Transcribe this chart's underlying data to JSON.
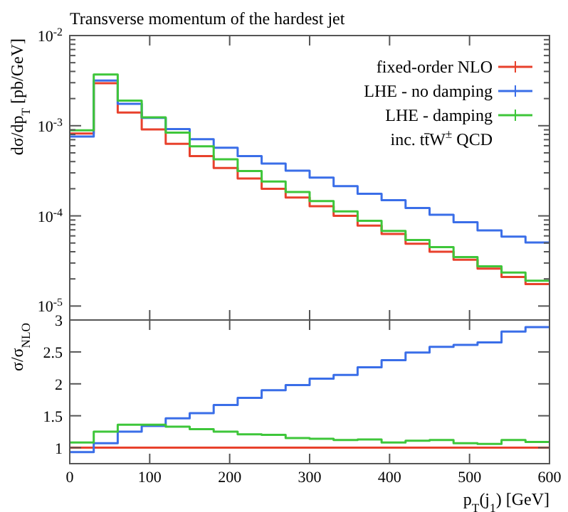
{
  "chart_data": [
    {
      "type": "histogram",
      "title": "Transverse momentum of the hardest jet",
      "ylabel": "dσ/dp$_{T}$ [pb/GeV]",
      "log": "y",
      "legend": "top right",
      "tick_labels": "y",
      "grid": false,
      "bins": [
        0,
        30,
        60,
        90,
        120,
        150,
        180,
        210,
        240,
        270,
        300,
        330,
        360,
        390,
        420,
        450,
        480,
        510,
        540,
        570,
        600
      ],
      "xlim": [
        0,
        600
      ],
      "xticks": [
        {
          "value": 0,
          "label": null
        },
        {
          "value": 100,
          "label": null
        },
        {
          "value": 200,
          "label": null
        },
        {
          "value": 300,
          "label": null
        },
        {
          "value": 400,
          "label": null
        },
        {
          "value": 500,
          "label": null
        },
        {
          "value": 600,
          "label": null
        }
      ],
      "ylim": [
        7e-06,
        0.01
      ],
      "yticks": [
        {
          "value": 1e-05,
          "label": "10$^{-5}$"
        },
        {
          "value": 2e-05,
          "label": null
        },
        {
          "value": 3e-05,
          "label": null
        },
        {
          "value": 4e-05,
          "label": null
        },
        {
          "value": 5e-05,
          "label": null
        },
        {
          "value": 6e-05,
          "label": null
        },
        {
          "value": 7e-05,
          "label": null
        },
        {
          "value": 8e-05,
          "label": null
        },
        {
          "value": 9e-05,
          "label": null
        },
        {
          "value": 0.0001,
          "label": "10$^{-4}$"
        },
        {
          "value": 0.0002,
          "label": null
        },
        {
          "value": 0.0003,
          "label": null
        },
        {
          "value": 0.0004,
          "label": null
        },
        {
          "value": 0.0005,
          "label": null
        },
        {
          "value": 0.0006,
          "label": null
        },
        {
          "value": 0.0007,
          "label": null
        },
        {
          "value": 0.0008,
          "label": null
        },
        {
          "value": 0.0009,
          "label": null
        },
        {
          "value": 0.001,
          "label": "10$^{-3}$"
        },
        {
          "value": 0.002,
          "label": null
        },
        {
          "value": 0.003,
          "label": null
        },
        {
          "value": 0.004,
          "label": null
        },
        {
          "value": 0.005,
          "label": null
        },
        {
          "value": 0.006,
          "label": null
        },
        {
          "value": 0.007,
          "label": null
        },
        {
          "value": 0.008,
          "label": null
        },
        {
          "value": 0.009,
          "label": null
        },
        {
          "value": 0.01,
          "label": "10$^{-2}$"
        }
      ],
      "annotations": [
        "inc. tt̄W$^{±}$ QCD"
      ],
      "series": [
        {
          "name": "fixed-order NLO",
          "color": "#e8412c",
          "values": [
            0.00082,
            0.00296,
            0.0014,
            0.00091,
            0.00063,
            0.00046,
            0.00034,
            0.00026,
            0.0002,
            0.00016,
            0.000128,
            0.0001,
            7.8e-05,
            6.3e-05,
            4.9e-05,
            4e-05,
            3.26e-05,
            2.6e-05,
            2.1e-05,
            1.75e-05
          ]
        },
        {
          "name": "LHE - no damping",
          "color": "#3a6ee8",
          "values": [
            0.00076,
            0.00317,
            0.00175,
            0.00122,
            0.00092,
            0.00071,
            0.00057,
            0.00046,
            0.00038,
            0.000317,
            0.000266,
            0.000214,
            0.000176,
            0.000149,
            0.000122,
            0.000103,
            8.5e-05,
            6.9e-05,
            5.9e-05,
            5.06e-05
          ]
        },
        {
          "name": "LHE - damping",
          "color": "#3ec63a",
          "values": [
            0.00089,
            0.0037,
            0.0019,
            0.00124,
            0.00084,
            0.00059,
            0.000425,
            0.000315,
            0.00024,
            0.000184,
            0.000146,
            0.000112,
            8.8e-05,
            6.8e-05,
            5.4e-05,
            4.5e-05,
            3.5e-05,
            2.76e-05,
            2.35e-05,
            1.91e-05
          ]
        }
      ]
    },
    {
      "type": "histogram",
      "ylabel": "σ/σ$_{NLO}$",
      "xlabel": "p$_{T}$(j$_{1}$) [GeV]",
      "grid": false,
      "bins": [
        0,
        30,
        60,
        90,
        120,
        150,
        180,
        210,
        240,
        270,
        300,
        330,
        360,
        390,
        420,
        450,
        480,
        510,
        540,
        570,
        600
      ],
      "xlim": [
        0,
        600
      ],
      "xticks": [
        0,
        100,
        200,
        300,
        400,
        500,
        600
      ],
      "ylim": [
        0.75,
        3
      ],
      "yticks": [
        1,
        1.5,
        2,
        2.5,
        3
      ],
      "series": [
        {
          "color": "#e8412c",
          "values": [
            1,
            1,
            1,
            1,
            1,
            1,
            1,
            1,
            1,
            1,
            1,
            1,
            1,
            1,
            1,
            1,
            1,
            1,
            1,
            1
          ]
        },
        {
          "color": "#3a6ee8",
          "values": [
            0.93,
            1.07,
            1.25,
            1.34,
            1.46,
            1.54,
            1.67,
            1.78,
            1.9,
            1.98,
            2.08,
            2.14,
            2.26,
            2.37,
            2.49,
            2.58,
            2.61,
            2.65,
            2.82,
            2.89
          ]
        },
        {
          "color": "#3ec63a",
          "values": [
            1.08,
            1.25,
            1.36,
            1.36,
            1.33,
            1.29,
            1.25,
            1.21,
            1.2,
            1.15,
            1.14,
            1.12,
            1.13,
            1.08,
            1.11,
            1.12,
            1.07,
            1.06,
            1.12,
            1.09
          ]
        }
      ]
    }
  ]
}
